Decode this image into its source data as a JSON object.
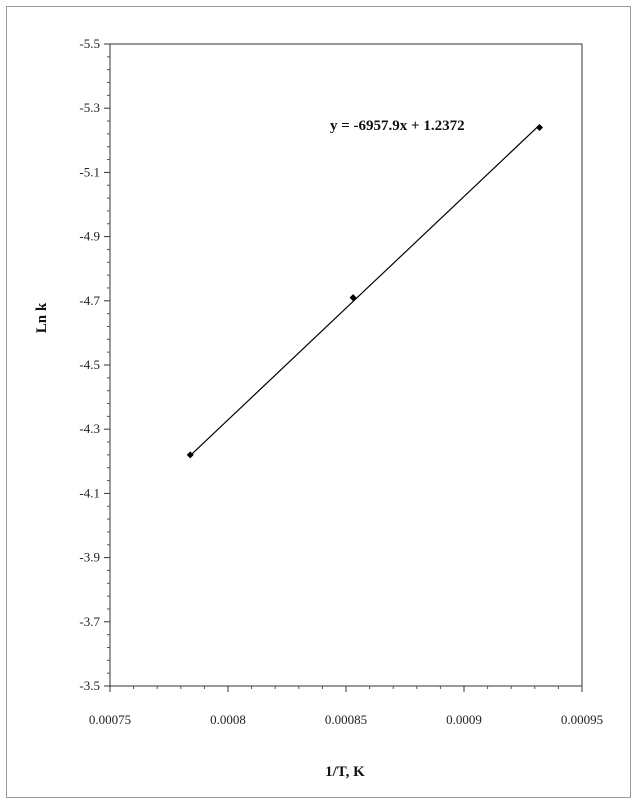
{
  "chart_data": {
    "type": "scatter",
    "title": "",
    "xlabel": "1/T, K",
    "ylabel": "Ln k",
    "xlim": [
      0.00075,
      0.00095
    ],
    "ylim": [
      -3.5,
      -5.5
    ],
    "y_axis_reversed": true,
    "grid": false,
    "legend": "none",
    "x_ticks": [
      "0.00075",
      "0.0008",
      "0.00085",
      "0.0009",
      "0.00095"
    ],
    "y_ticks": [
      "-5.5",
      "-5.3",
      "-5.1",
      "-4.9",
      "-4.7",
      "-4.5",
      "-4.3",
      "-4.1",
      "-3.9",
      "-3.7",
      "-3.5"
    ],
    "x_tick_values": [
      0.00075,
      0.0008,
      0.00085,
      0.0009,
      0.00095
    ],
    "y_tick_values": [
      -5.5,
      -5.3,
      -5.1,
      -4.9,
      -4.7,
      -4.5,
      -4.3,
      -4.1,
      -3.9,
      -3.7,
      -3.5
    ],
    "series": [
      {
        "points": [
          {
            "x": 0.000784,
            "y": -4.22
          },
          {
            "x": 0.000853,
            "y": -4.71
          },
          {
            "x": 0.000932,
            "y": -5.24
          }
        ],
        "marker": "diamond",
        "color": "#000000"
      }
    ],
    "trendline": {
      "type": "linear",
      "slope": -6957.9,
      "intercept": 1.2372,
      "x_range": [
        0.000784,
        0.000932
      ],
      "equation_label": "y = -6957.9x + 1.2372",
      "color": "#000000"
    }
  }
}
